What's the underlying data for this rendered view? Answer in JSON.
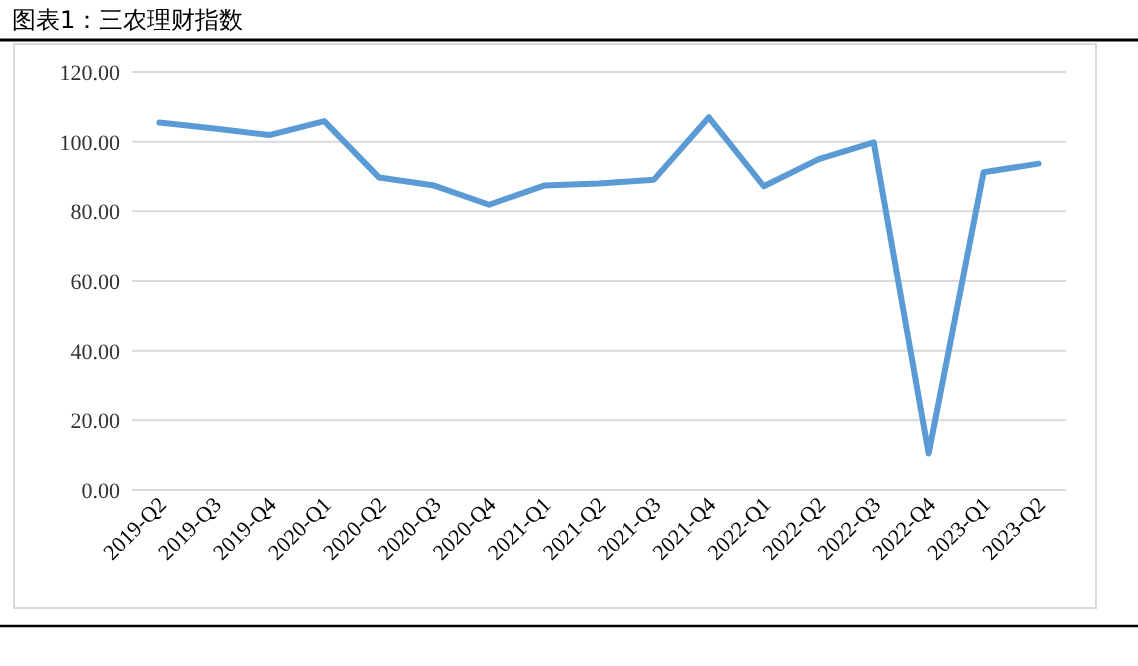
{
  "chart_data": {
    "type": "line",
    "title": "图表1：三农理财指数",
    "categories": [
      "2019-Q2",
      "2019-Q3",
      "2019-Q4",
      "2020-Q1",
      "2020-Q2",
      "2020-Q3",
      "2020-Q4",
      "2021-Q1",
      "2021-Q2",
      "2021-Q3",
      "2021-Q4",
      "2022-Q1",
      "2022-Q2",
      "2022-Q3",
      "2022-Q4",
      "2023-Q1",
      "2023-Q2"
    ],
    "series": [
      {
        "color": "#5b9bd5",
        "values": [
          105.5,
          103.8,
          101.9,
          105.9,
          89.7,
          87.4,
          81.9,
          87.4,
          88.0,
          89.1,
          107.0,
          87.2,
          95.0,
          99.8,
          10.5,
          91.2,
          93.7
        ]
      }
    ],
    "ylim": [
      0,
      120
    ],
    "yticks": [
      {
        "value": 0,
        "label": "0.00"
      },
      {
        "value": 20,
        "label": "20.00"
      },
      {
        "value": 40,
        "label": "40.00"
      },
      {
        "value": 60,
        "label": "60.00"
      },
      {
        "value": 80,
        "label": "80.00"
      },
      {
        "value": 100,
        "label": "100.00"
      },
      {
        "value": 120,
        "label": "120.00"
      }
    ],
    "grid": "y",
    "marker": "none",
    "line_style": "solid"
  }
}
